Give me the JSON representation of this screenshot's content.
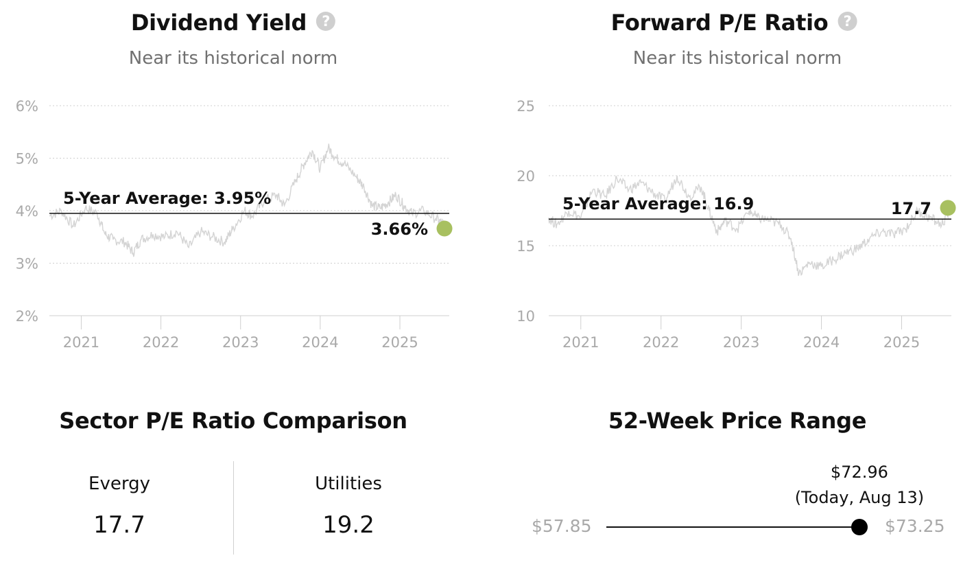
{
  "dividend_yield": {
    "title": "Dividend Yield",
    "help_icon": "question-circle-icon",
    "subtitle": "Near its historical norm",
    "average_label": "5-Year Average: 3.95%",
    "current_label": "3.66%"
  },
  "forward_pe": {
    "title": "Forward P/E Ratio",
    "help_icon": "question-circle-icon",
    "subtitle": "Near its historical norm",
    "average_label": "5-Year Average: 16.9",
    "current_label": "17.7"
  },
  "chart_data": [
    {
      "type": "line",
      "title": "Dividend Yield",
      "subtitle": "Near its historical norm",
      "ylim": [
        2,
        6
      ],
      "yticks": [
        2,
        3,
        4,
        5,
        6
      ],
      "ytick_labels": [
        "2%",
        "3%",
        "4%",
        "5%",
        "6%"
      ],
      "xlim": [
        2020.6,
        2025.62
      ],
      "xticks": [
        2021,
        2022,
        2023,
        2024,
        2025
      ],
      "xtick_labels": [
        "2021",
        "2022",
        "2023",
        "2024",
        "2025"
      ],
      "grid": true,
      "series": [
        {
          "x": [
            2020.6,
            2020.75,
            2020.9,
            2021.05,
            2021.2,
            2021.3,
            2021.4,
            2021.55,
            2021.65,
            2021.75,
            2021.9,
            2022.05,
            2022.2,
            2022.35,
            2022.5,
            2022.65,
            2022.8,
            2022.9,
            2023.05,
            2023.15,
            2023.3,
            2023.45,
            2023.55,
            2023.7,
            2023.8,
            2023.9,
            2024.0,
            2024.1,
            2024.2,
            2024.3,
            2024.45,
            2024.55,
            2024.65,
            2024.75,
            2024.85,
            2024.95,
            2025.05,
            2025.15,
            2025.3,
            2025.45,
            2025.55,
            2025.62
          ],
          "y": [
            3.9,
            4.0,
            3.7,
            4.05,
            3.95,
            3.55,
            3.45,
            3.4,
            3.2,
            3.45,
            3.55,
            3.5,
            3.6,
            3.3,
            3.6,
            3.5,
            3.4,
            3.65,
            4.0,
            3.9,
            4.2,
            4.3,
            4.1,
            4.6,
            4.9,
            5.15,
            4.8,
            5.2,
            5.0,
            4.9,
            4.65,
            4.45,
            4.1,
            4.05,
            4.15,
            4.3,
            4.1,
            3.95,
            4.0,
            3.85,
            3.75,
            3.66
          ]
        }
      ],
      "reference_line": {
        "label": "5-Year Average: 3.95%",
        "value": 3.95
      },
      "current_point": {
        "label": "3.66%",
        "value": 3.66,
        "color": "#a8c060"
      },
      "line_color": "#d4d4d4"
    },
    {
      "type": "line",
      "title": "Forward P/E Ratio",
      "subtitle": "Near its historical norm",
      "ylim": [
        10,
        25
      ],
      "yticks": [
        10,
        15,
        20,
        25
      ],
      "ytick_labels": [
        "10",
        "15",
        "20",
        "25"
      ],
      "xlim": [
        2020.6,
        2025.62
      ],
      "xticks": [
        2021,
        2022,
        2023,
        2024,
        2025
      ],
      "xtick_labels": [
        "2021",
        "2022",
        "2023",
        "2024",
        "2025"
      ],
      "grid": true,
      "series": [
        {
          "x": [
            2020.6,
            2020.7,
            2020.85,
            2021.0,
            2021.15,
            2021.3,
            2021.45,
            2021.6,
            2021.75,
            2021.9,
            2022.05,
            2022.2,
            2022.35,
            2022.5,
            2022.6,
            2022.7,
            2022.8,
            2022.95,
            2023.1,
            2023.2,
            2023.35,
            2023.5,
            2023.62,
            2023.72,
            2023.85,
            2024.0,
            2024.15,
            2024.3,
            2024.45,
            2024.6,
            2024.75,
            2024.9,
            2025.05,
            2025.2,
            2025.35,
            2025.5,
            2025.62
          ],
          "y": [
            17.0,
            16.5,
            17.5,
            17.0,
            19.0,
            18.5,
            19.8,
            19.0,
            19.5,
            18.8,
            18.2,
            20.0,
            18.5,
            19.2,
            17.5,
            16.0,
            16.8,
            16.2,
            17.5,
            17.0,
            16.8,
            16.5,
            15.5,
            13.0,
            13.8,
            13.5,
            14.0,
            14.5,
            14.8,
            15.5,
            16.0,
            15.8,
            16.2,
            17.5,
            17.0,
            16.5,
            17.7
          ]
        }
      ],
      "reference_line": {
        "label": "5-Year Average: 16.9",
        "value": 16.9
      },
      "current_point": {
        "label": "17.7",
        "value": 17.7,
        "color": "#a8c060"
      },
      "line_color": "#d4d4d4"
    }
  ],
  "sector_comparison": {
    "title": "Sector P/E Ratio Comparison",
    "left_name": "Evergy",
    "left_value": "17.7",
    "right_name": "Utilities",
    "right_value": "19.2"
  },
  "price_range": {
    "title": "52-Week Price Range",
    "low": "$57.85",
    "high": "$73.25",
    "today_price": "$72.96",
    "today_label": "(Today, Aug 13)",
    "low_value": 57.85,
    "high_value": 73.25,
    "today_value": 72.96
  }
}
